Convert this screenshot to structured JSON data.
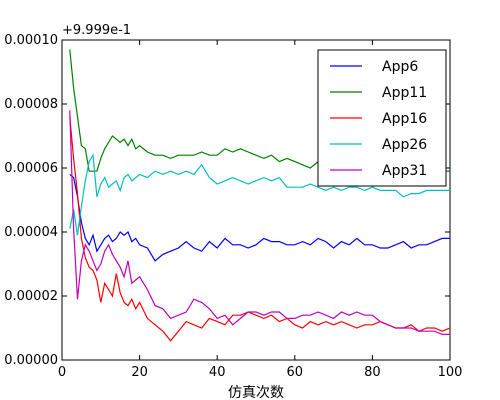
{
  "chart_data": {
    "type": "line",
    "xlabel": "仿真次数",
    "ylabel": "",
    "offset_text": "+9.999e-1",
    "xlim": [
      0,
      100
    ],
    "ylim": [
      0.0,
      0.0001
    ],
    "x_ticks": [
      0,
      20,
      40,
      60,
      80,
      100
    ],
    "x_tick_labels": [
      "0",
      "20",
      "40",
      "60",
      "80",
      "100"
    ],
    "y_ticks": [
      0.0,
      2e-05,
      4e-05,
      6e-05,
      8e-05,
      0.0001
    ],
    "y_tick_labels": [
      "0.00000",
      "0.00002",
      "0.00004",
      "0.00006",
      "0.00008",
      "0.00010"
    ],
    "grid": false,
    "legend_position": "top-right",
    "series": [
      {
        "name": "App6",
        "color": "#0000ff",
        "x": [
          2,
          3,
          4,
          5,
          6,
          7,
          8,
          9,
          10,
          11,
          12,
          13,
          14,
          15,
          16,
          17,
          18,
          19,
          20,
          22,
          24,
          26,
          28,
          30,
          32,
          34,
          36,
          38,
          40,
          42,
          44,
          46,
          48,
          50,
          52,
          54,
          56,
          58,
          60,
          62,
          64,
          66,
          68,
          70,
          72,
          74,
          76,
          78,
          80,
          82,
          84,
          86,
          88,
          90,
          92,
          94,
          96,
          98,
          100
        ],
        "values": [
          5.8e-05,
          5.7e-05,
          5.1e-05,
          4.3e-05,
          3.8e-05,
          3.6e-05,
          3.9e-05,
          3.4e-05,
          3.6e-05,
          3.8e-05,
          3.9e-05,
          3.7e-05,
          3.8e-05,
          4e-05,
          3.9e-05,
          4e-05,
          3.7e-05,
          3.8e-05,
          3.6e-05,
          3.5e-05,
          3.1e-05,
          3.3e-05,
          3.4e-05,
          3.5e-05,
          3.7e-05,
          3.5e-05,
          3.4e-05,
          3.7e-05,
          3.5e-05,
          3.8e-05,
          3.6e-05,
          3.6e-05,
          3.5e-05,
          3.6e-05,
          3.8e-05,
          3.7e-05,
          3.7e-05,
          3.6e-05,
          3.6e-05,
          3.7e-05,
          3.6e-05,
          3.8e-05,
          3.7e-05,
          3.5e-05,
          3.7e-05,
          3.6e-05,
          3.8e-05,
          3.6e-05,
          3.6e-05,
          3.5e-05,
          3.5e-05,
          3.6e-05,
          3.7e-05,
          3.5e-05,
          3.6e-05,
          3.6e-05,
          3.7e-05,
          3.8e-05,
          3.8e-05
        ]
      },
      {
        "name": "App11",
        "color": "#008000",
        "x": [
          2,
          3,
          4,
          5,
          6,
          7,
          8,
          9,
          10,
          11,
          12,
          13,
          14,
          15,
          16,
          17,
          18,
          19,
          20,
          22,
          24,
          26,
          28,
          30,
          32,
          34,
          36,
          38,
          40,
          42,
          44,
          46,
          48,
          50,
          52,
          54,
          56,
          58,
          60,
          62,
          64,
          66,
          68,
          70,
          72,
          74,
          76,
          78,
          80,
          82,
          84,
          86,
          88,
          90,
          92,
          94,
          96,
          98,
          100
        ],
        "values": [
          9.7e-05,
          8.5e-05,
          7.6e-05,
          6.7e-05,
          6.6e-05,
          5.9e-05,
          5.9e-05,
          5.9e-05,
          6.3e-05,
          6.6e-05,
          6.8e-05,
          7e-05,
          6.9e-05,
          6.8e-05,
          6.9e-05,
          6.7e-05,
          6.9e-05,
          6.6e-05,
          6.7e-05,
          6.5e-05,
          6.4e-05,
          6.4e-05,
          6.3e-05,
          6.4e-05,
          6.4e-05,
          6.4e-05,
          6.5e-05,
          6.4e-05,
          6.4e-05,
          6.6e-05,
          6.5e-05,
          6.6e-05,
          6.5e-05,
          6.4e-05,
          6.3e-05,
          6.4e-05,
          6.2e-05,
          6.3e-05,
          6.2e-05,
          6.1e-05,
          6e-05,
          6.2e-05,
          6.1e-05,
          6.2e-05,
          6.1e-05,
          6.2e-05,
          6.1e-05,
          6.1e-05,
          6.2e-05,
          6.1e-05,
          6e-05,
          5.9e-05,
          5.9e-05,
          5.9e-05,
          5.8e-05,
          5.8e-05,
          5.9e-05,
          5.9e-05,
          5.9e-05
        ]
      },
      {
        "name": "App16",
        "color": "#ff0000",
        "x": [
          2,
          3,
          4,
          5,
          6,
          7,
          8,
          9,
          10,
          11,
          12,
          13,
          14,
          15,
          16,
          17,
          18,
          19,
          20,
          22,
          24,
          26,
          28,
          30,
          32,
          34,
          36,
          38,
          40,
          42,
          44,
          46,
          48,
          50,
          52,
          54,
          56,
          58,
          60,
          62,
          64,
          66,
          68,
          70,
          72,
          74,
          76,
          78,
          80,
          82,
          84,
          86,
          88,
          90,
          92,
          94,
          96,
          98,
          100
        ],
        "values": [
          7.6e-05,
          6.3e-05,
          5.2e-05,
          3.8e-05,
          3.2e-05,
          2.9e-05,
          2.8e-05,
          2.5e-05,
          1.8e-05,
          2.4e-05,
          2.2e-05,
          2e-05,
          2.7e-05,
          2.1e-05,
          1.8e-05,
          1.7e-05,
          1.9e-05,
          1.6e-05,
          1.8e-05,
          1.3e-05,
          1.1e-05,
          9e-06,
          6e-06,
          9e-06,
          1.2e-05,
          1.1e-05,
          1e-05,
          1.3e-05,
          1.2e-05,
          1.1e-05,
          1.4e-05,
          1.4e-05,
          1.5e-05,
          1.4e-05,
          1.3e-05,
          1.4e-05,
          1.2e-05,
          1.3e-05,
          1.1e-05,
          1e-05,
          1.2e-05,
          1.1e-05,
          1.2e-05,
          1.1e-05,
          1.2e-05,
          1.1e-05,
          1e-05,
          1.1e-05,
          1.1e-05,
          1.2e-05,
          1.1e-05,
          1e-05,
          1e-05,
          1.1e-05,
          9e-06,
          1e-05,
          1e-05,
          9e-06,
          1e-05
        ]
      },
      {
        "name": "App26",
        "color": "#00bfbf",
        "x": [
          2,
          3,
          4,
          5,
          6,
          7,
          8,
          9,
          10,
          11,
          12,
          13,
          14,
          15,
          16,
          17,
          18,
          19,
          20,
          22,
          24,
          26,
          28,
          30,
          32,
          34,
          36,
          38,
          40,
          42,
          44,
          46,
          48,
          50,
          52,
          54,
          56,
          58,
          60,
          62,
          64,
          66,
          68,
          70,
          72,
          74,
          76,
          78,
          80,
          82,
          84,
          86,
          88,
          90,
          92,
          94,
          96,
          98,
          100
        ],
        "values": [
          4.1e-05,
          4.7e-05,
          3.9e-05,
          4.8e-05,
          5.6e-05,
          6.2e-05,
          6.4e-05,
          5.1e-05,
          5.5e-05,
          5.7e-05,
          5.4e-05,
          5.5e-05,
          5.6e-05,
          5.3e-05,
          5.7e-05,
          5.8e-05,
          5.6e-05,
          5.7e-05,
          5.8e-05,
          5.7e-05,
          5.9e-05,
          5.8e-05,
          5.9e-05,
          5.8e-05,
          5.9e-05,
          5.8e-05,
          6.1e-05,
          5.7e-05,
          5.5e-05,
          5.6e-05,
          5.7e-05,
          5.6e-05,
          5.5e-05,
          5.6e-05,
          5.7e-05,
          5.6e-05,
          5.7e-05,
          5.4e-05,
          5.4e-05,
          5.4e-05,
          5.5e-05,
          5.4e-05,
          5.3e-05,
          5.4e-05,
          5.3e-05,
          5.4e-05,
          5.4e-05,
          5.3e-05,
          5.4e-05,
          5.3e-05,
          5.3e-05,
          5.3e-05,
          5.1e-05,
          5.2e-05,
          5.2e-05,
          5.3e-05,
          5.3e-05,
          5.3e-05,
          5.3e-05
        ]
      },
      {
        "name": "App31",
        "color": "#bf00bf",
        "x": [
          2,
          3,
          4,
          5,
          6,
          7,
          8,
          9,
          10,
          11,
          12,
          13,
          14,
          15,
          16,
          17,
          18,
          19,
          20,
          22,
          24,
          26,
          28,
          30,
          32,
          34,
          36,
          38,
          40,
          42,
          44,
          46,
          48,
          50,
          52,
          54,
          56,
          58,
          60,
          62,
          64,
          66,
          68,
          70,
          72,
          74,
          76,
          78,
          80,
          82,
          84,
          86,
          88,
          90,
          92,
          94,
          96,
          98,
          100
        ],
        "values": [
          7.8e-05,
          4.1e-05,
          1.9e-05,
          3.1e-05,
          3.6e-05,
          3.4e-05,
          3.1e-05,
          2.8e-05,
          3e-05,
          3.4e-05,
          3.6e-05,
          3.3e-05,
          3.1e-05,
          2.9e-05,
          2.6e-05,
          3.1e-05,
          2.4e-05,
          2.5e-05,
          2.6e-05,
          2.2e-05,
          1.7e-05,
          1.6e-05,
          1.3e-05,
          1.4e-05,
          1.5e-05,
          1.9e-05,
          1.8e-05,
          1.6e-05,
          1.3e-05,
          1.4e-05,
          1.1e-05,
          1.3e-05,
          1.5e-05,
          1.5e-05,
          1.4e-05,
          1.5e-05,
          1.5e-05,
          1.3e-05,
          1.3e-05,
          1.4e-05,
          1.4e-05,
          1.5e-05,
          1.4e-05,
          1.3e-05,
          1.5e-05,
          1.4e-05,
          1.5e-05,
          1.4e-05,
          1.4e-05,
          1.2e-05,
          1.1e-05,
          1e-05,
          1e-05,
          1e-05,
          9e-06,
          9e-06,
          9e-06,
          8e-06,
          8e-06
        ]
      }
    ]
  }
}
